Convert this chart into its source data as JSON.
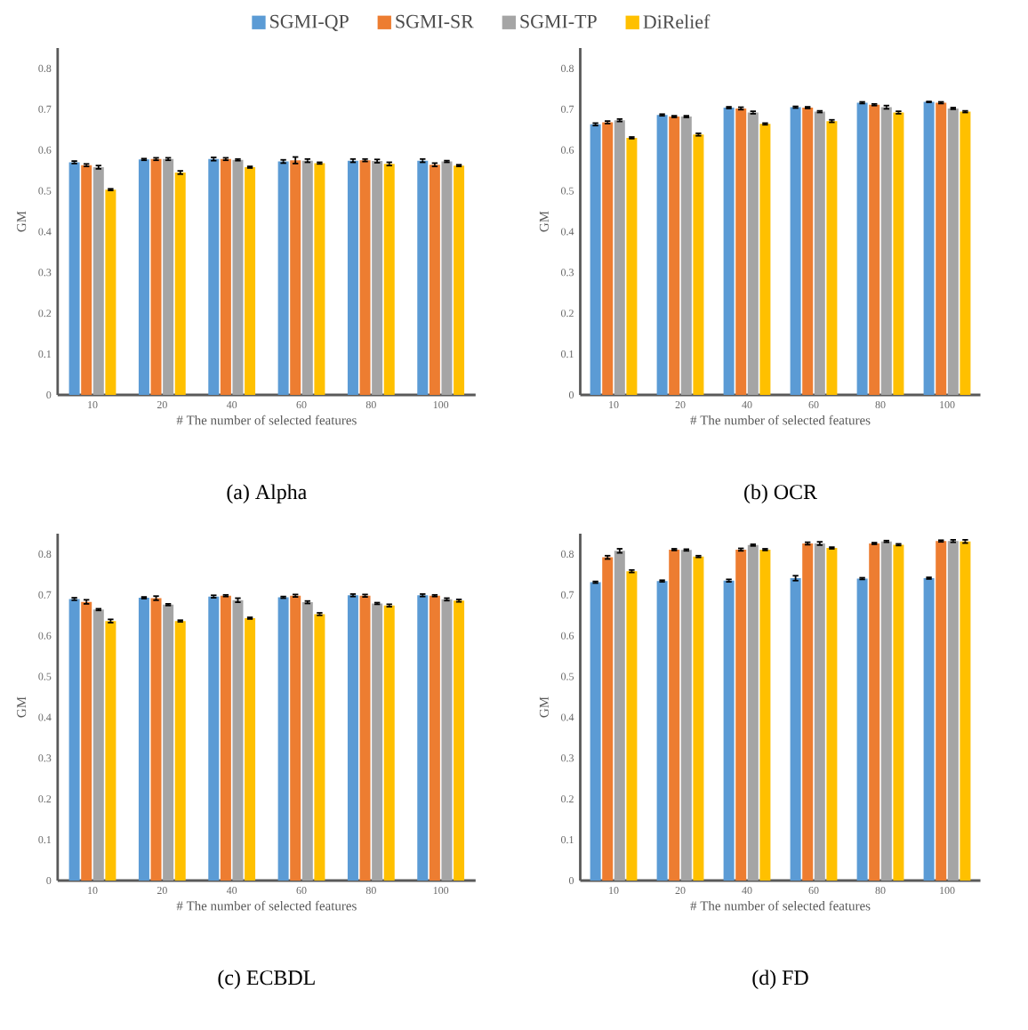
{
  "chart_data": [
    {
      "type": "bar",
      "title": "(a) Alpha",
      "xlabel": "# The number of selected features",
      "ylabel": "GM",
      "categories": [
        "10",
        "20",
        "40",
        "60",
        "80",
        "100"
      ],
      "ylim": [
        0,
        0.85
      ],
      "yticks": [
        0,
        0.1,
        0.2,
        0.3,
        0.4,
        0.5,
        0.6,
        0.7,
        0.8
      ],
      "legend": "top",
      "series": [
        {
          "name": "SGMI-QP",
          "color": "#5b9bd5",
          "values": [
            0.57,
            0.577,
            0.578,
            0.572,
            0.574,
            0.574
          ],
          "errors": [
            0.003,
            0.002,
            0.004,
            0.004,
            0.004,
            0.004
          ]
        },
        {
          "name": "SGMI-SR",
          "color": "#ed7d31",
          "values": [
            0.563,
            0.578,
            0.578,
            0.575,
            0.575,
            0.564
          ],
          "errors": [
            0.003,
            0.003,
            0.003,
            0.008,
            0.003,
            0.004
          ]
        },
        {
          "name": "SGMI-TP",
          "color": "#a5a5a5",
          "values": [
            0.558,
            0.578,
            0.576,
            0.574,
            0.573,
            0.572
          ],
          "errors": [
            0.004,
            0.003,
            0.002,
            0.004,
            0.004,
            0.002
          ]
        },
        {
          "name": "DiRelief",
          "color": "#ffc000",
          "values": [
            0.503,
            0.545,
            0.558,
            0.568,
            0.566,
            0.562
          ],
          "errors": [
            0.002,
            0.004,
            0.002,
            0.002,
            0.004,
            0.002
          ]
        }
      ]
    },
    {
      "type": "bar",
      "title": "(b) OCR",
      "xlabel": "# The number of selected features",
      "ylabel": "GM",
      "categories": [
        "10",
        "20",
        "40",
        "60",
        "80",
        "100"
      ],
      "ylim": [
        0,
        0.85
      ],
      "yticks": [
        0,
        0.1,
        0.2,
        0.3,
        0.4,
        0.5,
        0.6,
        0.7,
        0.8
      ],
      "series": [
        {
          "color": "#5b9bd5",
          "values": [
            0.663,
            0.686,
            0.704,
            0.705,
            0.716,
            0.718
          ],
          "errors": [
            0.003,
            0.002,
            0.002,
            0.002,
            0.002,
            0.001
          ]
        },
        {
          "color": "#ed7d31",
          "values": [
            0.668,
            0.682,
            0.702,
            0.704,
            0.711,
            0.716
          ],
          "errors": [
            0.003,
            0.002,
            0.003,
            0.002,
            0.002,
            0.002
          ]
        },
        {
          "color": "#a5a5a5",
          "values": [
            0.673,
            0.682,
            0.692,
            0.694,
            0.705,
            0.702
          ],
          "errors": [
            0.003,
            0.002,
            0.003,
            0.002,
            0.004,
            0.002
          ]
        },
        {
          "color": "#ffc000",
          "values": [
            0.63,
            0.638,
            0.664,
            0.671,
            0.692,
            0.694
          ],
          "errors": [
            0.002,
            0.003,
            0.002,
            0.003,
            0.003,
            0.002
          ]
        }
      ]
    },
    {
      "type": "bar",
      "title": "(c) ECBDL",
      "xlabel": "# The number of selected features",
      "ylabel": "GM",
      "categories": [
        "10",
        "20",
        "40",
        "60",
        "80",
        "100"
      ],
      "ylim": [
        0,
        0.85
      ],
      "yticks": [
        0,
        0.1,
        0.2,
        0.3,
        0.4,
        0.5,
        0.6,
        0.7,
        0.8
      ],
      "series": [
        {
          "color": "#5b9bd5",
          "values": [
            0.69,
            0.693,
            0.696,
            0.694,
            0.699,
            0.699
          ],
          "errors": [
            0.003,
            0.002,
            0.003,
            0.002,
            0.003,
            0.003
          ]
        },
        {
          "color": "#ed7d31",
          "values": [
            0.683,
            0.692,
            0.698,
            0.698,
            0.698,
            0.698
          ],
          "errors": [
            0.005,
            0.005,
            0.002,
            0.003,
            0.003,
            0.002
          ]
        },
        {
          "color": "#a5a5a5",
          "values": [
            0.664,
            0.676,
            0.687,
            0.682,
            0.679,
            0.689
          ],
          "errors": [
            0.002,
            0.002,
            0.005,
            0.003,
            0.002,
            0.003
          ]
        },
        {
          "color": "#ffc000",
          "values": [
            0.636,
            0.636,
            0.643,
            0.653,
            0.674,
            0.686
          ],
          "errors": [
            0.004,
            0.002,
            0.002,
            0.003,
            0.003,
            0.003
          ]
        }
      ]
    },
    {
      "type": "bar",
      "title": "(d) FD",
      "xlabel": "# The number of selected features",
      "ylabel": "GM",
      "categories": [
        "10",
        "20",
        "40",
        "60",
        "80",
        "100"
      ],
      "ylim": [
        0,
        0.85
      ],
      "yticks": [
        0,
        0.1,
        0.2,
        0.3,
        0.4,
        0.5,
        0.6,
        0.7,
        0.8
      ],
      "series": [
        {
          "color": "#5b9bd5",
          "values": [
            0.731,
            0.734,
            0.735,
            0.741,
            0.74,
            0.741
          ],
          "errors": [
            0.002,
            0.002,
            0.003,
            0.006,
            0.002,
            0.002
          ]
        },
        {
          "color": "#ed7d31",
          "values": [
            0.792,
            0.811,
            0.811,
            0.826,
            0.826,
            0.832
          ],
          "errors": [
            0.004,
            0.002,
            0.003,
            0.003,
            0.002,
            0.002
          ]
        },
        {
          "color": "#a5a5a5",
          "values": [
            0.808,
            0.81,
            0.822,
            0.826,
            0.831,
            0.832
          ],
          "errors": [
            0.005,
            0.002,
            0.002,
            0.004,
            0.002,
            0.003
          ]
        },
        {
          "color": "#ffc000",
          "values": [
            0.758,
            0.794,
            0.811,
            0.815,
            0.823,
            0.831
          ],
          "errors": [
            0.003,
            0.002,
            0.002,
            0.002,
            0.002,
            0.004
          ]
        }
      ]
    }
  ]
}
